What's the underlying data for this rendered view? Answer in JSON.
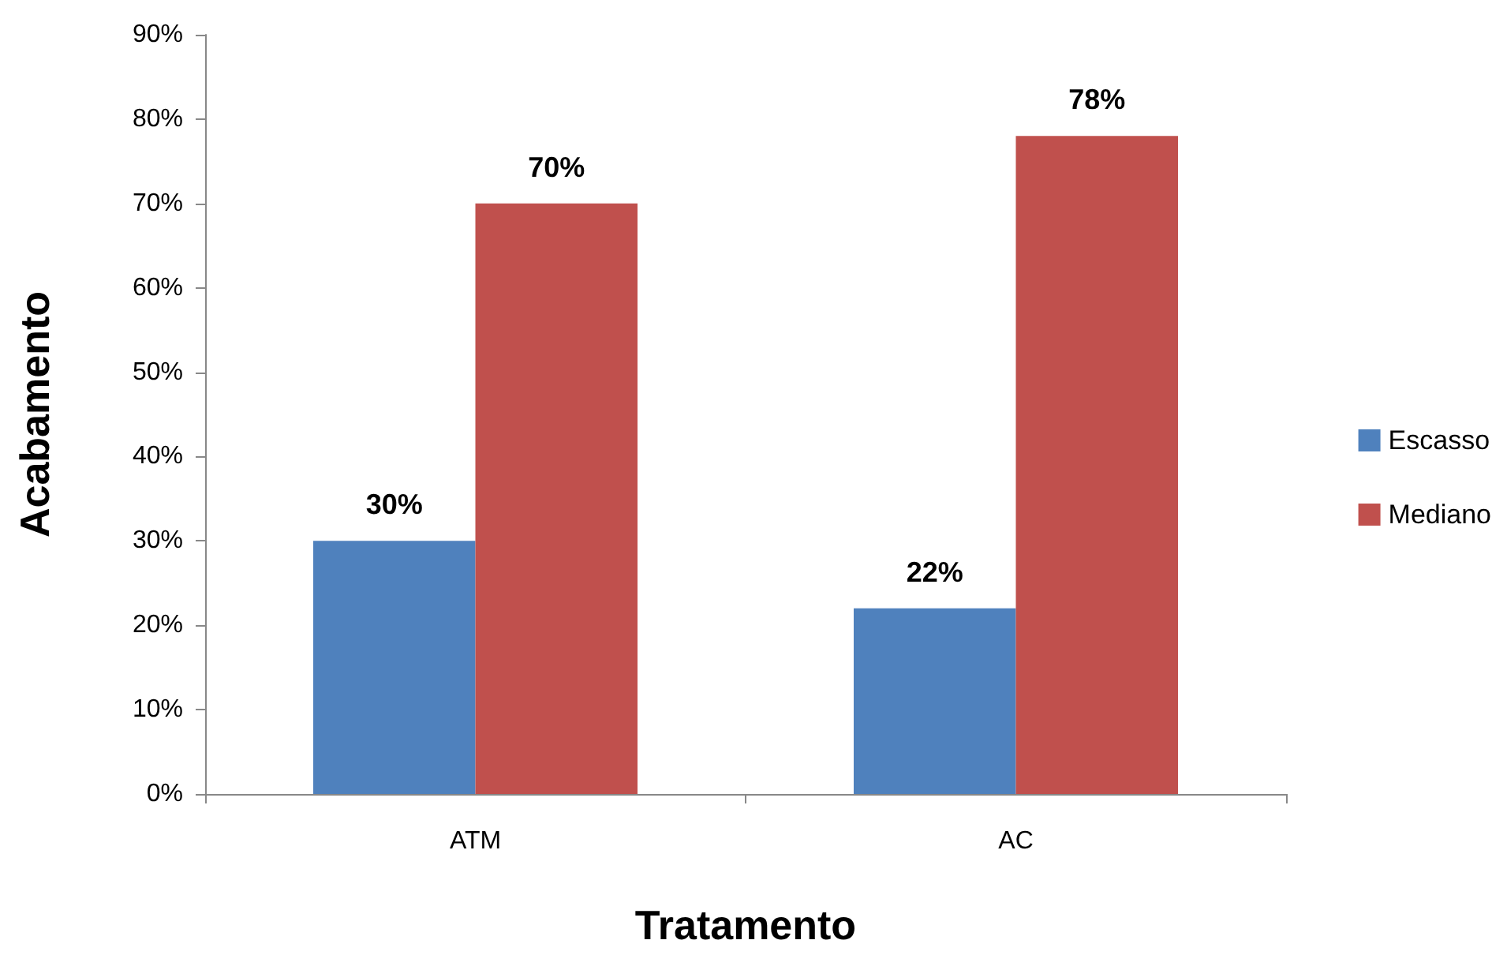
{
  "chart_data": {
    "type": "bar",
    "xlabel": "Tratamento",
    "ylabel": "Acabamento",
    "categories": [
      "ATM",
      "AC"
    ],
    "series": [
      {
        "name": "Escasso",
        "color": "#4f81bd",
        "values": [
          30,
          22
        ],
        "value_labels": [
          "30%",
          "22%"
        ]
      },
      {
        "name": "Mediano",
        "color": "#c0504d",
        "values": [
          70,
          78
        ],
        "value_labels": [
          "70%",
          "78%"
        ]
      }
    ],
    "ylim": [
      0,
      90
    ],
    "yticks": [
      {
        "value": 0,
        "label": "0%"
      },
      {
        "value": 10,
        "label": "10%"
      },
      {
        "value": 20,
        "label": "20%"
      },
      {
        "value": 30,
        "label": "30%"
      },
      {
        "value": 40,
        "label": "40%"
      },
      {
        "value": 50,
        "label": "50%"
      },
      {
        "value": 60,
        "label": "60%"
      },
      {
        "value": 70,
        "label": "70%"
      },
      {
        "value": 80,
        "label": "80%"
      },
      {
        "value": 90,
        "label": "90%"
      }
    ],
    "grid": false,
    "legend": "right"
  }
}
